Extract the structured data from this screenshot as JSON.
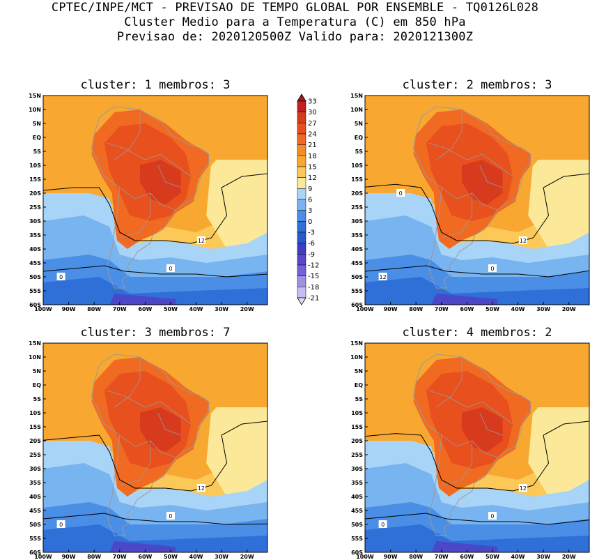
{
  "header": {
    "line1": "CPTEC/INPE/MCT - PREVISAO DE TEMPO GLOBAL POR ENSEMBLE - TQ0126L028",
    "line2": "Cluster Medio para a Temperatura (C) em 850 hPa",
    "line3": "Previsao de: 2020120500Z   Valido para: 2020121300Z"
  },
  "panels": [
    {
      "title": "cluster: 1  membros: 3",
      "contour_labels": [
        "12",
        "0",
        "0"
      ]
    },
    {
      "title": "cluster: 2  membros: 3",
      "contour_labels": [
        "12",
        "12",
        "0",
        "0"
      ]
    },
    {
      "title": "cluster: 3  membros: 7",
      "contour_labels": [
        "12",
        "0",
        "0"
      ]
    },
    {
      "title": "cluster: 4  membros: 2",
      "contour_labels": [
        "12",
        "0",
        "0"
      ]
    }
  ],
  "lat_ticks": [
    "15N",
    "10N",
    "5N",
    "EQ",
    "5S",
    "10S",
    "15S",
    "20S",
    "25S",
    "30S",
    "35S",
    "40S",
    "45S",
    "50S",
    "55S",
    "60S"
  ],
  "lon_ticks": [
    "100W",
    "90W",
    "80W",
    "70W",
    "60W",
    "50W",
    "40W",
    "30W",
    "20W"
  ],
  "colorbar": {
    "labels": [
      "33",
      "30",
      "27",
      "24",
      "21",
      "18",
      "15",
      "12",
      "9",
      "6",
      "3",
      "0",
      "-3",
      "-6",
      "-9",
      "-12",
      "-15",
      "-18",
      "-21"
    ],
    "colors": [
      "#a01818",
      "#c02020",
      "#d83a1e",
      "#e8501e",
      "#f06a22",
      "#f58c26",
      "#f8a830",
      "#fcc858",
      "#fbe898",
      "#a8d4f8",
      "#78b4f0",
      "#4a8ee6",
      "#2f6fd8",
      "#2a58cc",
      "#3c3cc4",
      "#5a46c8",
      "#7a60d8",
      "#a090e2",
      "#c8bcf0",
      "#e4dcf8"
    ]
  },
  "fill_colors": {
    "ocean_warm": "#f8a830",
    "ocean_mild": "#fcc858",
    "yellow": "#fbe898",
    "land_hot": "#f06a22",
    "land_hotter": "#e8501e",
    "core": "#d83a1e",
    "cool": "#a8d4f8",
    "cold": "#78b4f0",
    "colder": "#4a8ee6",
    "deep": "#2f6fd8",
    "violet": "#4a48c8"
  }
}
